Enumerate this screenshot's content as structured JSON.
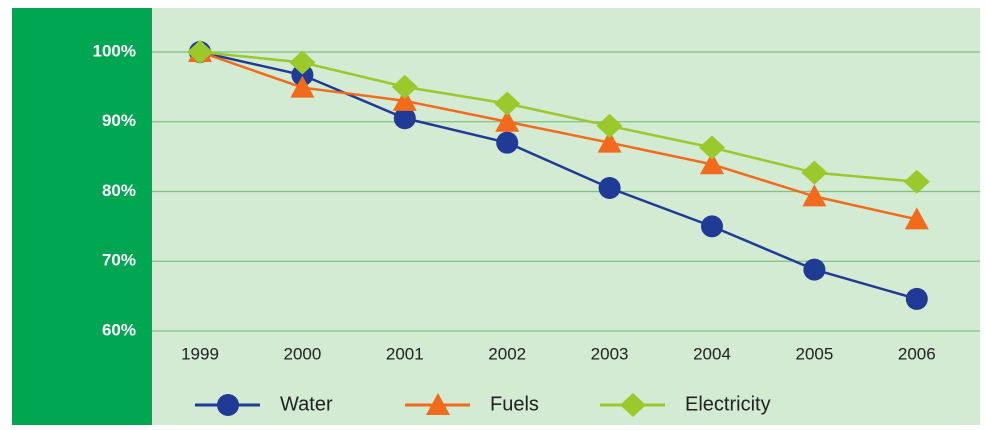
{
  "chart_data": {
    "type": "line",
    "categories": [
      "1999",
      "2000",
      "2001",
      "2002",
      "2003",
      "2004",
      "2005",
      "2006"
    ],
    "series": [
      {
        "name": "Water",
        "color": "#1f3b95",
        "marker": "circle",
        "values": [
          100,
          96.7,
          90.5,
          87,
          80.5,
          75,
          68.8,
          64.6
        ]
      },
      {
        "name": "Fuels",
        "color": "#f26b1d",
        "marker": "triangle",
        "values": [
          100,
          94.9,
          93,
          90,
          87,
          83.9,
          79.3,
          76
        ]
      },
      {
        "name": "Electricity",
        "color": "#9ac92b",
        "marker": "diamond",
        "values": [
          100,
          98.5,
          95,
          92.6,
          89.4,
          86.3,
          82.7,
          81.4
        ]
      }
    ],
    "ylim": [
      60,
      100
    ],
    "yticks": [
      {
        "value": 60,
        "label": "60%"
      },
      {
        "value": 70,
        "label": "70%"
      },
      {
        "value": 80,
        "label": "80%"
      },
      {
        "value": 90,
        "label": "90%"
      },
      {
        "value": 100,
        "label": "100%"
      }
    ],
    "grid": true
  }
}
